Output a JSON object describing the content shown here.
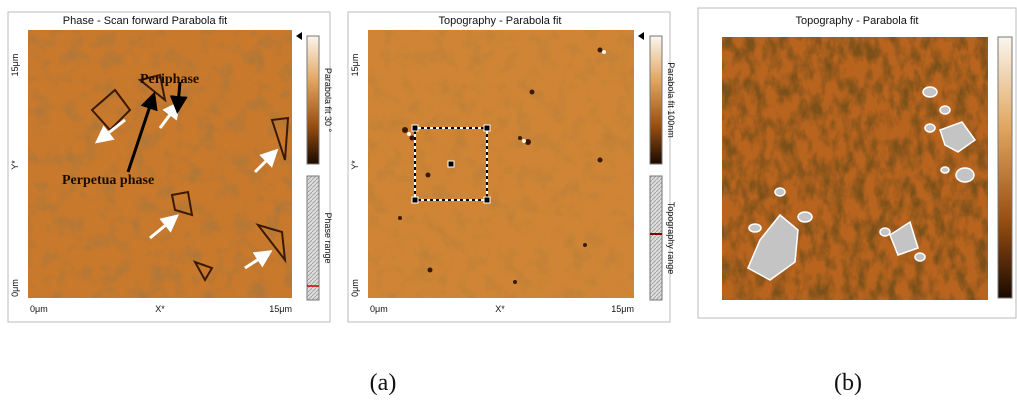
{
  "panels": [
    {
      "title": "Phase - Scan forward    Parabola fit",
      "y_labels": [
        "15μm",
        "Y*",
        "0μm"
      ],
      "x_labels": [
        "0μm",
        "X*",
        "15μm"
      ],
      "colorbar_label": "Parabola fit 30 °",
      "range_label": "Phase range",
      "annotations": [
        "Periphase",
        "Perpetua phase"
      ]
    },
    {
      "title": "Topography - Parabola fit",
      "y_labels": [
        "15μm",
        "Y*",
        "0μm"
      ],
      "x_labels": [
        "0μm",
        "X*",
        "15μm"
      ],
      "colorbar_label": "Parabola fit 100nm",
      "range_label": "Topography range"
    },
    {
      "title": "Topography - Parabola fit"
    }
  ],
  "captions": [
    "(a)",
    "(b)"
  ]
}
